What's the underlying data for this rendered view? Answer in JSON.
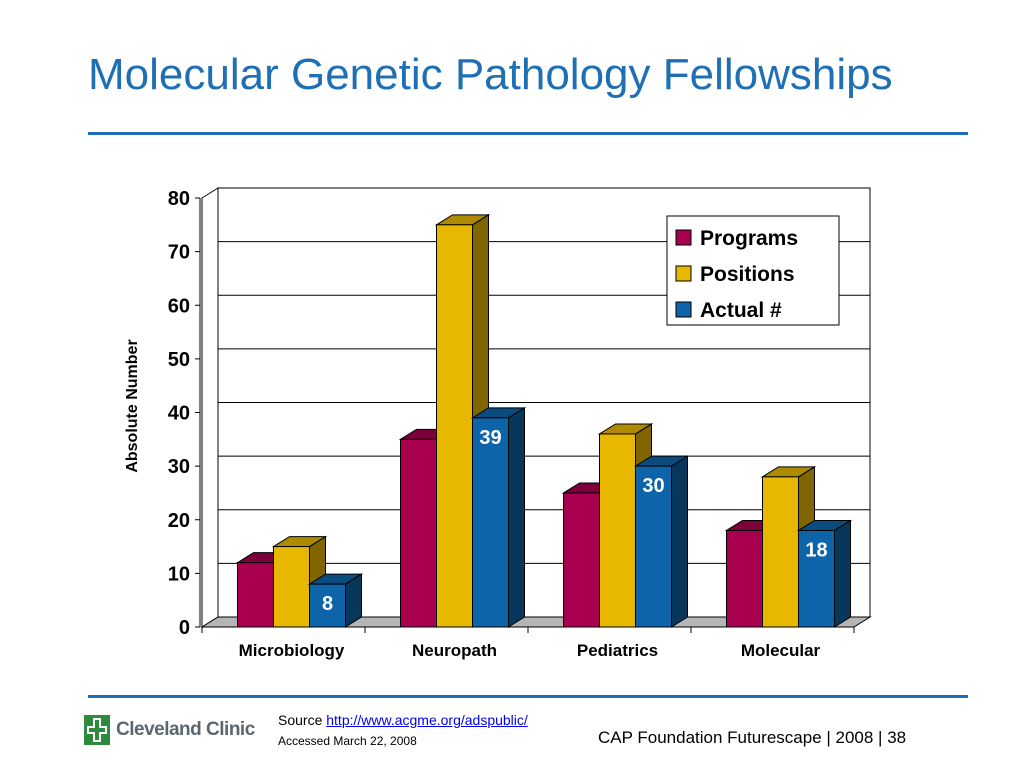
{
  "slide": {
    "title": "Molecular Genetic Pathology Fellowships",
    "accent_color": "#1f6fb5"
  },
  "footer": {
    "source_label": "Source",
    "source_link": "http://www.acgme.org/adspublic/",
    "accessed": "Accessed March 22, 2008",
    "right_text": "CAP Foundation Futurescape | 2008 | 38",
    "logo_text": "Cleveland Clinic",
    "logo_icon": "cleveland-clinic-cross-icon"
  },
  "chart_data": {
    "type": "bar",
    "title": "",
    "xlabel": "",
    "ylabel": "Absolute Number",
    "ylim": [
      0,
      80
    ],
    "yticks": [
      0,
      10,
      20,
      30,
      40,
      50,
      60,
      70,
      80
    ],
    "grid": true,
    "legend_position": "top-right",
    "categories": [
      "Microbiology",
      "Neuropath",
      "Pediatrics",
      "Molecular"
    ],
    "series": [
      {
        "name": "Programs",
        "color": "#a8004f",
        "values": [
          12,
          35,
          25,
          18
        ],
        "data_labels": [
          "",
          "",
          "",
          ""
        ]
      },
      {
        "name": "Positions",
        "color": "#e8b800",
        "values": [
          15,
          75,
          36,
          28
        ],
        "data_labels": [
          "",
          "",
          "",
          ""
        ]
      },
      {
        "name": "Actual #",
        "color": "#0e64a8",
        "values": [
          8,
          39,
          30,
          18
        ],
        "data_labels": [
          "8",
          "39",
          "30",
          "18"
        ]
      }
    ]
  }
}
